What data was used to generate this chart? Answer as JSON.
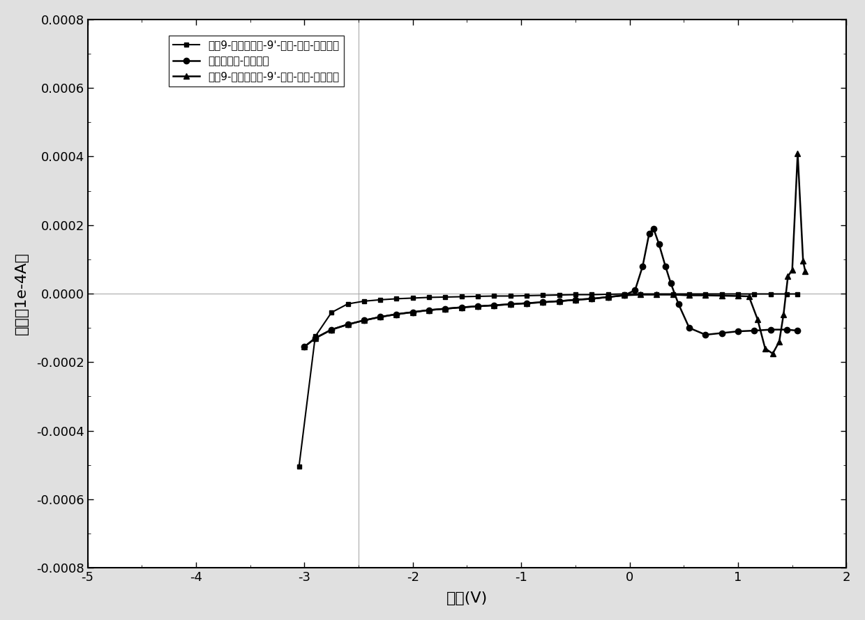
{
  "xlim": [
    -5,
    2
  ],
  "ylim": [
    -0.0008,
    0.0008
  ],
  "xlabel": "电压(V)",
  "ylabel": "电流（1e-4A）",
  "legend": [
    "聚（9-对辛氧基苯-9'-羟基-芙）-氧化谱线",
    "二茂铁氧化-还原谱线",
    "聚（9-对辛氧基苯-9'-羟基-芙）-还原谱线"
  ],
  "fig_facecolor": "#e0e0e0",
  "ax_facecolor": "#ffffff",
  "yticks": [
    -0.0008,
    -0.0006,
    -0.0004,
    -0.0002,
    0.0,
    0.0002,
    0.0004,
    0.0006,
    0.0008
  ],
  "xticks": [
    -5,
    -4,
    -3,
    -2,
    -1,
    0,
    1,
    2
  ],
  "hline_y": 0.0,
  "vline_x": -2.5,
  "curve1_x": [
    -3.05,
    -2.9,
    -2.75,
    -2.6,
    -2.45,
    -2.3,
    -2.15,
    -2.0,
    -1.85,
    -1.7,
    -1.55,
    -1.4,
    -1.25,
    -1.1,
    -0.95,
    -0.8,
    -0.65,
    -0.5,
    -0.35,
    -0.2,
    -0.05,
    0.1,
    0.25,
    0.4,
    0.55,
    0.7,
    0.85,
    1.0,
    1.15,
    1.3,
    1.45,
    1.55
  ],
  "curve1_y": [
    -0.000505,
    -0.000125,
    -5.5e-05,
    -3e-05,
    -2.2e-05,
    -1.8e-05,
    -1.5e-05,
    -1.3e-05,
    -1.1e-05,
    -1e-05,
    -9e-06,
    -8e-06,
    -7e-06,
    -7e-06,
    -6e-06,
    -5e-06,
    -4e-06,
    -3e-06,
    -3e-06,
    -2e-06,
    -1e-06,
    -1e-06,
    -1e-06,
    -1e-06,
    -1e-06,
    -1e-06,
    -1e-06,
    -1e-06,
    -1e-06,
    -1e-06,
    -1e-06,
    -1e-06
  ],
  "curve2_x": [
    -3.0,
    -2.9,
    -2.75,
    -2.6,
    -2.45,
    -2.3,
    -2.15,
    -2.0,
    -1.85,
    -1.7,
    -1.55,
    -1.4,
    -1.25,
    -1.1,
    -0.95,
    -0.8,
    -0.65,
    -0.5,
    -0.35,
    -0.2,
    -0.05,
    0.05,
    0.12,
    0.18,
    0.22,
    0.27,
    0.33,
    0.38,
    0.45,
    0.55,
    0.7,
    0.85,
    1.0,
    1.15,
    1.3,
    1.45,
    1.55
  ],
  "curve2_y": [
    -0.000155,
    -0.00013,
    -0.000105,
    -9e-05,
    -7.8e-05,
    -6.8e-05,
    -6e-05,
    -5.4e-05,
    -4.8e-05,
    -4.4e-05,
    -4e-05,
    -3.7e-05,
    -3.4e-05,
    -3.1e-05,
    -2.8e-05,
    -2.5e-05,
    -2.2e-05,
    -1.8e-05,
    -1.5e-05,
    -1e-05,
    -5e-06,
    1e-05,
    8e-05,
    0.000175,
    0.00019,
    0.000145,
    8e-05,
    3e-05,
    -3e-05,
    -0.0001,
    -0.00012,
    -0.000115,
    -0.00011,
    -0.000108,
    -0.000105,
    -0.000105,
    -0.000108
  ],
  "curve3_x": [
    -3.0,
    -2.9,
    -2.75,
    -2.6,
    -2.45,
    -2.3,
    -2.15,
    -2.0,
    -1.85,
    -1.7,
    -1.55,
    -1.4,
    -1.25,
    -1.1,
    -0.95,
    -0.8,
    -0.65,
    -0.5,
    -0.35,
    -0.2,
    -0.05,
    0.1,
    0.25,
    0.4,
    0.55,
    0.7,
    0.85,
    1.0,
    1.1,
    1.18,
    1.25,
    1.32,
    1.38,
    1.42,
    1.46,
    1.5,
    1.55,
    1.6,
    1.62
  ],
  "curve3_y": [
    -0.000155,
    -0.00013,
    -0.000105,
    -9e-05,
    -7.8e-05,
    -6.8e-05,
    -6e-05,
    -5.4e-05,
    -4.8e-05,
    -4.4e-05,
    -4e-05,
    -3.7e-05,
    -3.4e-05,
    -3.1e-05,
    -2.8e-05,
    -2.5e-05,
    -2.2e-05,
    -1.8e-05,
    -1.5e-05,
    -1e-05,
    -5e-06,
    -3e-06,
    -3e-06,
    -3e-06,
    -5e-06,
    -5e-06,
    -6e-06,
    -7e-06,
    -8e-06,
    -7.5e-05,
    -0.00016,
    -0.000175,
    -0.00014,
    -6e-05,
    5e-05,
    7e-05,
    0.00041,
    9.5e-05,
    6.5e-05
  ]
}
